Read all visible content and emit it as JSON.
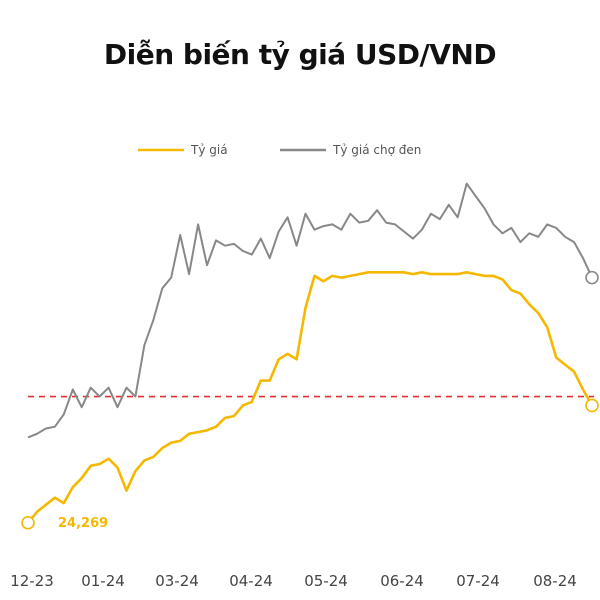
{
  "chart_data": {
    "type": "line",
    "title": "Diễn biến tỷ giá USD/VND",
    "xlabel": "",
    "ylabel": "",
    "x_tick_labels": [
      "12-23",
      "01-24",
      "03-24",
      "04-24",
      "05-24",
      "06-24",
      "07-24",
      "08-24"
    ],
    "legend": {
      "placement": "top"
    },
    "grid": false,
    "reference_line": {
      "color": "#e03030",
      "style": "dashed",
      "value": 24980
    },
    "data_labels": [
      {
        "series": "Tỷ giá",
        "index": 0,
        "text": "24,269"
      }
    ],
    "ylim": [
      24200,
      26200
    ],
    "series": [
      {
        "name": "Tỷ giá",
        "color": "#f5b800",
        "end_marker": true,
        "start_marker": true,
        "values": [
          24269,
          24330,
          24370,
          24410,
          24380,
          24470,
          24520,
          24590,
          24600,
          24630,
          24580,
          24450,
          24560,
          24620,
          24640,
          24690,
          24720,
          24730,
          24770,
          24780,
          24790,
          24810,
          24860,
          24870,
          24930,
          24950,
          25070,
          25070,
          25190,
          25220,
          25190,
          25480,
          25660,
          25630,
          25660,
          25650,
          25660,
          25670,
          25680,
          25680,
          25680,
          25680,
          25680,
          25670,
          25680,
          25670,
          25670,
          25670,
          25670,
          25680,
          25670,
          25660,
          25660,
          25640,
          25580,
          25560,
          25500,
          25450,
          25370,
          25200,
          25160,
          25120,
          25020,
          24930
        ]
      },
      {
        "name": "Tỷ giá chợ đen",
        "color": "#888888",
        "end_marker": true,
        "start_marker": false,
        "values": [
          24750,
          24770,
          24800,
          24810,
          24880,
          25020,
          24920,
          25030,
          24980,
          25030,
          24920,
          25030,
          24980,
          25270,
          25410,
          25590,
          25650,
          25890,
          25670,
          25950,
          25720,
          25860,
          25830,
          25840,
          25800,
          25780,
          25870,
          25760,
          25910,
          25990,
          25830,
          26010,
          25920,
          25940,
          25950,
          25920,
          26010,
          25960,
          25970,
          26030,
          25960,
          25950,
          25910,
          25870,
          25920,
          26010,
          25980,
          26060,
          25990,
          26180,
          26110,
          26040,
          25950,
          25900,
          25930,
          25850,
          25900,
          25880,
          25950,
          25930,
          25880,
          25850,
          25760,
          25650
        ]
      }
    ]
  }
}
